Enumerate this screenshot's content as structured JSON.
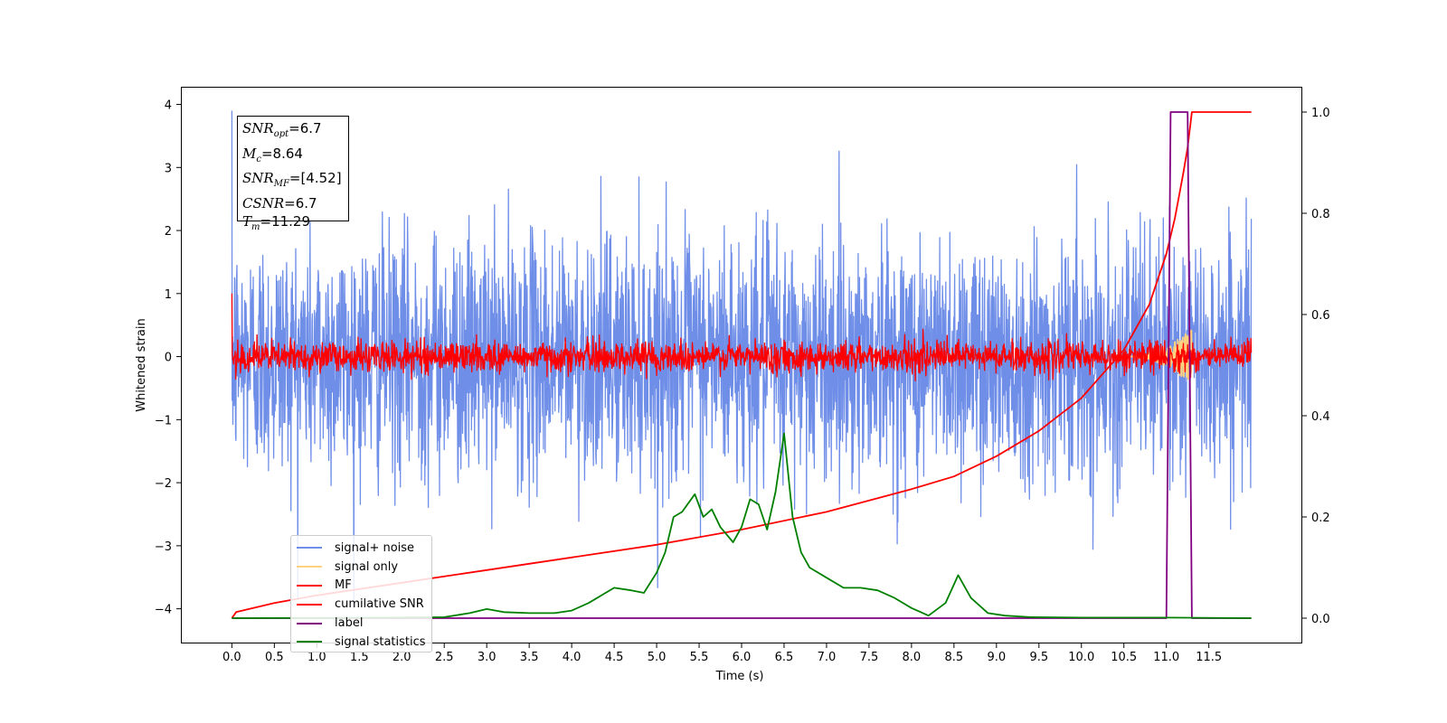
{
  "chart_data": {
    "type": "line",
    "title": "",
    "xlabel": "Time (s)",
    "ylabel": "Whitened strain",
    "xlim": [
      -0.6,
      12.6
    ],
    "ylim": [
      -4.55,
      4.28
    ],
    "y2lim": [
      -0.05,
      1.05
    ],
    "x_ticks": [
      0.0,
      0.5,
      1.0,
      1.5,
      2.0,
      2.5,
      3.0,
      3.5,
      4.0,
      4.5,
      5.0,
      5.5,
      6.0,
      6.5,
      7.0,
      7.5,
      8.0,
      8.5,
      9.0,
      9.5,
      10.0,
      10.5,
      11.0,
      11.5
    ],
    "x_tick_labels": [
      "0.0",
      "0.5",
      "1.0",
      "1.5",
      "2.0",
      "2.5",
      "3.0",
      "3.5",
      "4.0",
      "4.5",
      "5.0",
      "5.5",
      "6.0",
      "6.5",
      "7.0",
      "7.5",
      "8.0",
      "8.5",
      "9.0",
      "9.5",
      "10.0",
      "10.5",
      "11.0",
      "11.5"
    ],
    "y_ticks": [
      4,
      3,
      2,
      1,
      0,
      -1,
      -2,
      -3,
      -4
    ],
    "y_tick_labels": [
      "4",
      "3",
      "2",
      "1",
      "0",
      "−1",
      "−2",
      "−3",
      "−4"
    ],
    "y2_ticks": [
      1.0,
      0.8,
      0.6,
      0.4,
      0.2,
      0.0
    ],
    "y2_tick_labels": [
      "1.0",
      "0.8",
      "0.6",
      "0.4",
      "0.2",
      "0.0"
    ],
    "grid": false,
    "legend_placement": "lower-left",
    "series": [
      {
        "name": "signal+ noise",
        "axis": "left",
        "color": "#6f8ee8",
        "kind": "noise",
        "x_start": 0.0,
        "x_end": 12.0,
        "std": 0.95,
        "max": 3.9,
        "min": -4.1
      },
      {
        "name": "signal only",
        "axis": "left",
        "color": "#ffd27f",
        "kind": "chirp",
        "x_start": 10.5,
        "x_end": 11.3,
        "max": 0.4,
        "min": -0.5
      },
      {
        "name": "MF",
        "axis": "left",
        "color": "#ff0000",
        "kind": "noise",
        "x_start": 0.0,
        "x_end": 12.0,
        "std": 0.12,
        "max": 1.0,
        "min": -0.4
      },
      {
        "name": "cumilative SNR",
        "axis": "right",
        "color": "#ff0000",
        "kind": "line",
        "x": [
          0.0,
          0.05,
          0.5,
          1.0,
          2.0,
          3.0,
          4.0,
          5.0,
          6.0,
          7.0,
          8.0,
          8.5,
          9.0,
          9.5,
          10.0,
          10.5,
          10.8,
          11.0,
          11.1,
          11.2,
          11.25,
          11.3,
          12.0
        ],
        "values": [
          0.0,
          0.012,
          0.03,
          0.045,
          0.07,
          0.095,
          0.12,
          0.145,
          0.175,
          0.21,
          0.255,
          0.28,
          0.32,
          0.37,
          0.435,
          0.53,
          0.62,
          0.72,
          0.79,
          0.88,
          0.93,
          1.0,
          1.0
        ]
      },
      {
        "name": "label",
        "axis": "right",
        "color": "#800080",
        "kind": "line",
        "x": [
          0.0,
          11.0,
          11.05,
          11.25,
          11.3,
          12.0
        ],
        "values": [
          0.0,
          0.0,
          1.0,
          1.0,
          0.0,
          0.0
        ]
      },
      {
        "name": "signal statistics",
        "axis": "right",
        "color": "#008000",
        "kind": "line",
        "x": [
          0.0,
          2.0,
          2.5,
          2.8,
          3.0,
          3.2,
          3.5,
          3.8,
          4.0,
          4.2,
          4.5,
          4.7,
          4.85,
          5.0,
          5.1,
          5.2,
          5.3,
          5.45,
          5.55,
          5.65,
          5.75,
          5.9,
          6.0,
          6.1,
          6.2,
          6.3,
          6.4,
          6.5,
          6.6,
          6.7,
          6.8,
          7.0,
          7.2,
          7.4,
          7.6,
          7.8,
          8.0,
          8.2,
          8.4,
          8.55,
          8.7,
          8.9,
          9.1,
          9.4,
          10.0,
          11.0,
          12.0
        ],
        "values": [
          0.0,
          0.001,
          0.002,
          0.01,
          0.018,
          0.012,
          0.01,
          0.01,
          0.015,
          0.03,
          0.06,
          0.055,
          0.05,
          0.09,
          0.13,
          0.2,
          0.21,
          0.245,
          0.2,
          0.215,
          0.18,
          0.15,
          0.18,
          0.235,
          0.225,
          0.175,
          0.25,
          0.365,
          0.2,
          0.13,
          0.1,
          0.08,
          0.06,
          0.06,
          0.055,
          0.04,
          0.02,
          0.005,
          0.03,
          0.085,
          0.04,
          0.01,
          0.005,
          0.002,
          0.001,
          0.001,
          0.0
        ]
      }
    ],
    "annotations": [
      {
        "label": "SNR",
        "subscript": "opt",
        "value": "=6.7"
      },
      {
        "label": "M",
        "subscript": "c",
        "value": "=8.64"
      },
      {
        "label": "SNR",
        "subscript": "MF",
        "value": "=[4.52]"
      },
      {
        "label": "CSNR",
        "subscript": "",
        "value": "=6.7"
      },
      {
        "label": "T",
        "subscript": "m",
        "value": "=11.29"
      }
    ]
  }
}
